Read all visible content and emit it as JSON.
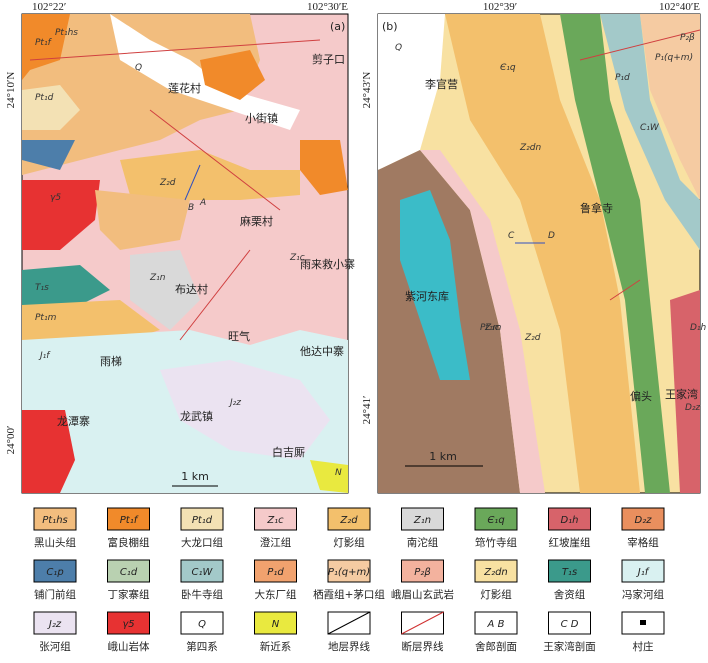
{
  "map_a": {
    "panel": "(a)",
    "coords": [
      "102°22′",
      "102°30′E",
      "24°10′N",
      "24°00′"
    ],
    "places": [
      "小街镇",
      "龙武镇",
      "莲花村",
      "剪子口",
      "麻栗村",
      "雨来救小寨",
      "布达村",
      "他达中寨",
      "雨梯",
      "龙潭寨",
      "白吉厮",
      "旺气"
    ],
    "units": [
      "Pt₁hs",
      "Pt₁f",
      "Pt₁d",
      "Z₁c",
      "Z₂d",
      "Z₁n",
      "J₁f",
      "J₂z",
      "T₁s",
      "γ5",
      "Q",
      "N",
      "Pt₁m",
      "A",
      "B"
    ],
    "scale": "1 km"
  },
  "map_b": {
    "panel": "(b)",
    "coords": [
      "102°39′",
      "102°40′E",
      "24°43′N",
      "24°41′"
    ],
    "places": [
      "李官营",
      "鲁拿寺",
      "王家湾",
      "偏头",
      "紫河东库"
    ],
    "units": [
      "Q",
      "Є₁q",
      "Z₂dn",
      "Z₁c",
      "Z₂d",
      "Pt₁m",
      "C₁W",
      "P₁d",
      "P₂β",
      "P₁(q+m)",
      "D₁h",
      "D₂z",
      "C",
      "D"
    ],
    "scale": "1 km"
  },
  "legend": [
    {
      "code": "Pt₁hs",
      "name": "黑山头组",
      "color": "#f2bd7e"
    },
    {
      "code": "Pt₁f",
      "name": "富良棚组",
      "color": "#f18a2a"
    },
    {
      "code": "Pt₁d",
      "name": "大龙口组",
      "color": "#f3e1b4"
    },
    {
      "code": "Z₁c",
      "name": "澄江组",
      "color": "#f5caca"
    },
    {
      "code": "Z₂d",
      "name": "灯影组",
      "color": "#f3c06c"
    },
    {
      "code": "Z₁n",
      "name": "南沱组",
      "color": "#d9d9d9"
    },
    {
      "code": "Є₁q",
      "name": "筇竹寺组",
      "color": "#6aa85a"
    },
    {
      "code": "D₁h",
      "name": "红坡崖组",
      "color": "#d7636a"
    },
    {
      "code": "D₂z",
      "name": "宰格组",
      "color": "#e98f5e"
    },
    {
      "code": "C₁p",
      "name": "铺门前组",
      "color": "#4d7eaa"
    },
    {
      "code": "C₁d",
      "name": "丁家寨组",
      "color": "#b9d1b1"
    },
    {
      "code": "C₁W",
      "name": "卧牛寺组",
      "color": "#a3c9c9"
    },
    {
      "code": "P₁d",
      "name": "大东厂组",
      "color": "#f1a26e"
    },
    {
      "code": "P₁(q+m)",
      "name": "栖霞组+茅口组",
      "color": "#f5cba2"
    },
    {
      "code": "P₂β",
      "name": "峨眉山玄武岩",
      "color": "#f3b29e"
    },
    {
      "code": "Z₂dn",
      "name": "灯影组",
      "color": "#f8e1a2"
    },
    {
      "code": "T₁s",
      "name": "舍资组",
      "color": "#3b9a8b"
    },
    {
      "code": "J₁f",
      "name": "冯家河组",
      "color": "#d9f1f1"
    },
    {
      "code": "J₂z",
      "name": "张河组",
      "color": "#ebe3f1"
    },
    {
      "code": "γ5",
      "name": "峨山岩体",
      "color": "#e73232"
    },
    {
      "code": "Q",
      "name": "第四系",
      "color": "#ffffff"
    },
    {
      "code": "N",
      "name": "新近系",
      "color": "#e9e93f"
    },
    {
      "name": "地层界线"
    },
    {
      "name": "断层界线"
    },
    {
      "code": "A B",
      "name": "舍郎剖面"
    },
    {
      "code": "C D",
      "name": "王家湾剖面"
    },
    {
      "name": "村庄"
    }
  ]
}
